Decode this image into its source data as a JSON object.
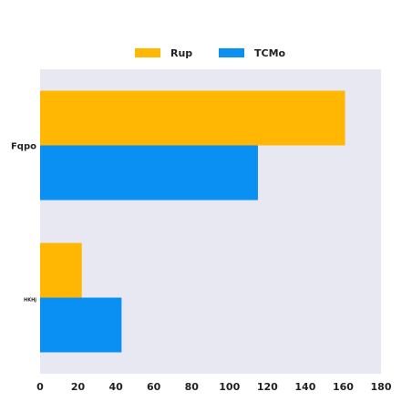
{
  "chart_data": {
    "type": "bar",
    "orientation": "horizontal",
    "categories": [
      "Fqpo",
      "HKHj"
    ],
    "series": [
      {
        "name": "Rup",
        "color": "#FFB703",
        "values": [
          161,
          22
        ]
      },
      {
        "name": "TCMo",
        "color": "#0A8FF2",
        "values": [
          115,
          43
        ]
      }
    ],
    "xlim": [
      0,
      180
    ],
    "xticks": [
      0,
      20,
      40,
      60,
      80,
      100,
      120,
      140,
      160,
      180
    ],
    "grid": false,
    "legend_position": "top-center",
    "plot_background": "#E8E8F3"
  }
}
